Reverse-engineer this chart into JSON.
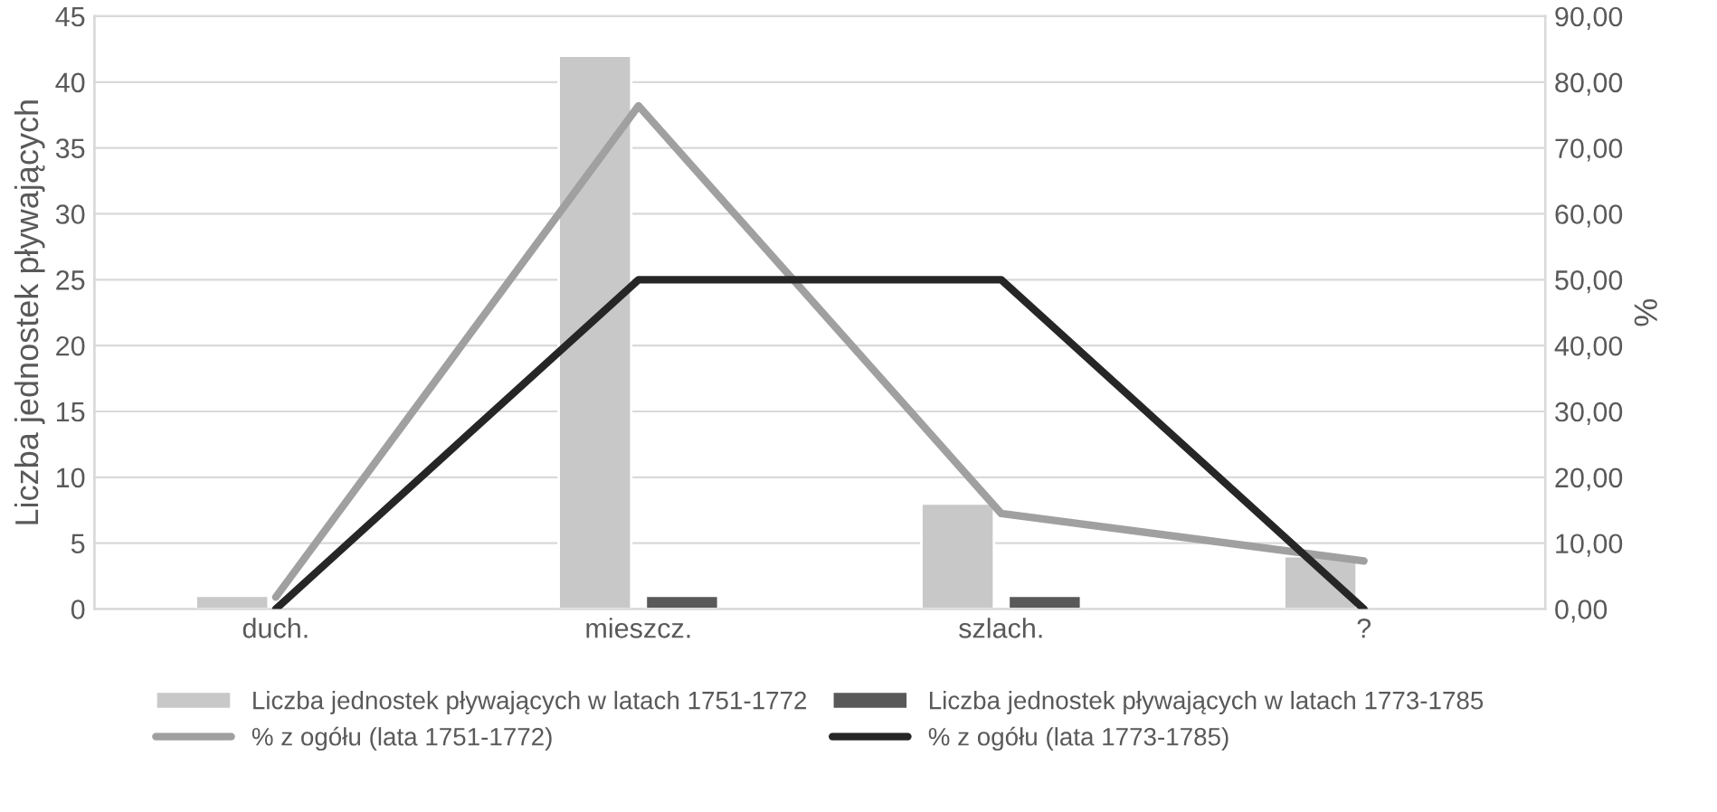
{
  "chart_data": {
    "type": "bar",
    "ylabel": "Liczba jednostek pływających",
    "y2label": "%",
    "categories": [
      "duch.",
      "mieszcz.",
      "szlach.",
      "?"
    ],
    "series": [
      {
        "name": "Liczba jednostek pływających w latach 1751-1772",
        "color": "#c8c8c8",
        "values": [
          1,
          42,
          8,
          4
        ]
      },
      {
        "name": "Liczba jednostek pływających w latach 1773-1785",
        "color": "#595959",
        "values": [
          0,
          1,
          1,
          0
        ]
      },
      {
        "name": "% z ogółu (lata 1751-1772)",
        "type": "line",
        "axis": "y2",
        "color": "#a0a0a0",
        "values": [
          1.8,
          76.4,
          14.5,
          7.3
        ]
      },
      {
        "name": "% z ogółu (lata 1773-1785)",
        "type": "line",
        "axis": "y2",
        "color": "#262626",
        "values": [
          0,
          50,
          50,
          0
        ]
      }
    ],
    "ylim": [
      0,
      45
    ],
    "yticks": [
      0,
      5,
      10,
      15,
      20,
      25,
      30,
      35,
      40,
      45
    ],
    "y2lim": [
      0,
      90
    ],
    "y2ticks": [
      {
        "value": 0,
        "label": "0,00"
      },
      {
        "value": 10,
        "label": "10,00"
      },
      {
        "value": 20,
        "label": "20,00"
      },
      {
        "value": 30,
        "label": "30,00"
      },
      {
        "value": 40,
        "label": "40,00"
      },
      {
        "value": 50,
        "label": "50,00"
      },
      {
        "value": 60,
        "label": "60,00"
      },
      {
        "value": 70,
        "label": "70,00"
      },
      {
        "value": 80,
        "label": "80,00"
      },
      {
        "value": 90,
        "label": "90,00"
      }
    ],
    "grid": "y",
    "legend": "bottom",
    "marker": "none",
    "line_style": "solid"
  }
}
